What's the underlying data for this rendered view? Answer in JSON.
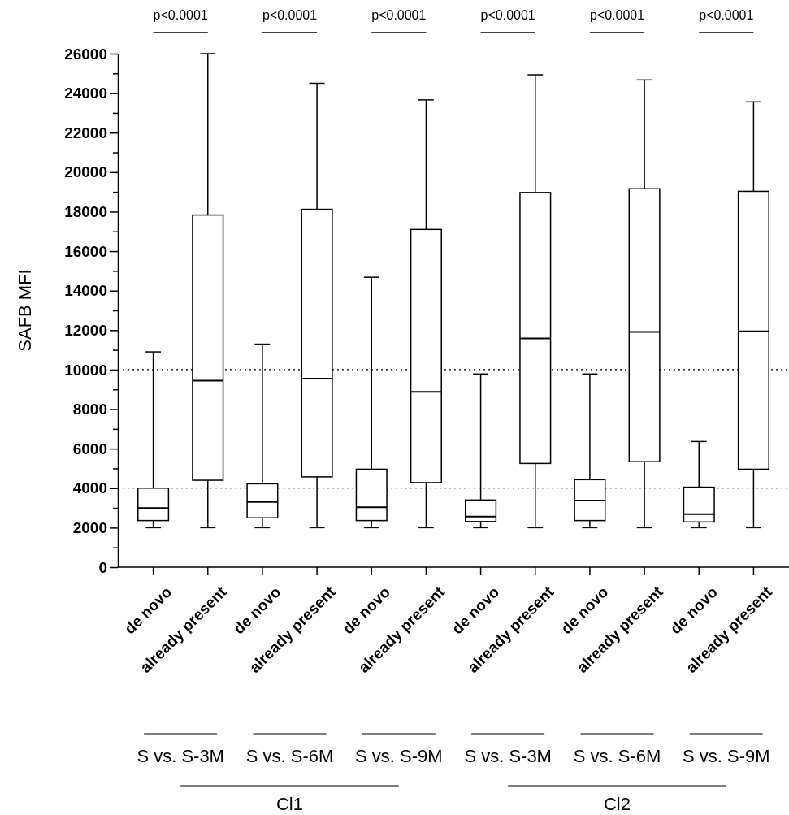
{
  "chart_data": {
    "type": "box",
    "ylabel": "SAFB MFI",
    "categories": [
      "de novo",
      "already present",
      "de novo",
      "already present",
      "de novo",
      "already present",
      "de novo",
      "already present",
      "de novo",
      "already present",
      "de novo",
      "already present"
    ],
    "boxes": [
      {
        "low": 2000,
        "q1": 2360,
        "median": 2990,
        "q3": 4000,
        "high": 10900
      },
      {
        "low": 2000,
        "q1": 4400,
        "median": 9440,
        "q3": 17830,
        "high": 26000
      },
      {
        "low": 2000,
        "q1": 2500,
        "median": 3300,
        "q3": 4220,
        "high": 11290
      },
      {
        "low": 2000,
        "q1": 4570,
        "median": 9540,
        "q3": 18120,
        "high": 24500
      },
      {
        "low": 2000,
        "q1": 2360,
        "median": 3030,
        "q3": 4960,
        "high": 14680
      },
      {
        "low": 2000,
        "q1": 4280,
        "median": 8880,
        "q3": 17100,
        "high": 23660
      },
      {
        "low": 2000,
        "q1": 2310,
        "median": 2560,
        "q3": 3400,
        "high": 9780
      },
      {
        "low": 2000,
        "q1": 5250,
        "median": 11580,
        "q3": 18970,
        "high": 24930
      },
      {
        "low": 2000,
        "q1": 2360,
        "median": 3370,
        "q3": 4430,
        "high": 9780
      },
      {
        "low": 2000,
        "q1": 5340,
        "median": 11910,
        "q3": 19160,
        "high": 24670
      },
      {
        "low": 2000,
        "q1": 2290,
        "median": 2680,
        "q3": 4050,
        "high": 6360
      },
      {
        "low": 2000,
        "q1": 4960,
        "median": 11940,
        "q3": 19030,
        "high": 23560
      }
    ],
    "color": "#000000",
    "ylim": [
      0,
      26000
    ],
    "yticks": [
      0,
      {
        "value": 1000,
        "label": null
      },
      2000,
      {
        "value": 3000,
        "label": null
      },
      4000,
      {
        "value": 5000,
        "label": null
      },
      6000,
      {
        "value": 7000,
        "label": null
      },
      8000,
      {
        "value": 9000,
        "label": null
      },
      10000,
      {
        "value": 11000,
        "label": null
      },
      12000,
      {
        "value": 13000,
        "label": null
      },
      14000,
      {
        "value": 15000,
        "label": null
      },
      16000,
      {
        "value": 17000,
        "label": null
      },
      18000,
      {
        "value": 19000,
        "label": null
      },
      20000,
      {
        "value": 21000,
        "label": null
      },
      22000,
      {
        "value": 23000,
        "label": null
      },
      24000,
      {
        "value": 25000,
        "label": null
      },
      26000
    ],
    "ref_lines": [
      {
        "axis": "y",
        "value": 10000,
        "line_style": "dotted"
      },
      {
        "axis": "y",
        "value": 4000,
        "line_style": "dotted"
      }
    ],
    "annotations": [
      "p<0.0001",
      "p<0.0001",
      "p<0.0001",
      "p<0.0001",
      "p<0.0001",
      "p<0.0001",
      "S vs. S-3M",
      "S vs. S-6M",
      "S vs. S-9M",
      "S vs. S-3M",
      "S vs. S-6M",
      "S vs. S-9M",
      "Cl1",
      "Cl2"
    ]
  }
}
